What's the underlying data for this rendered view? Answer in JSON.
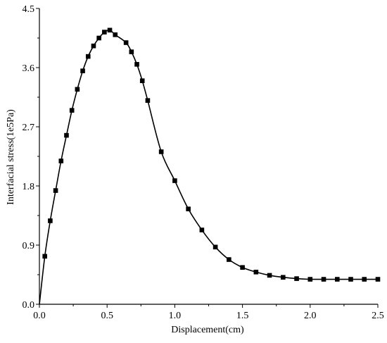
{
  "chart_data": {
    "type": "line",
    "xlabel": "Displacement(cm)",
    "ylabel": "Interfacial stress(1e5Pa)",
    "xlim": [
      0.0,
      2.5
    ],
    "ylim": [
      0.0,
      4.5
    ],
    "x_ticks": [
      0.0,
      0.5,
      1.0,
      1.5,
      2.0,
      2.5
    ],
    "x_tick_labels": [
      "0.0",
      "0.5",
      "1.0",
      "1.5",
      "2.0",
      "2.5"
    ],
    "y_ticks": [
      0.0,
      0.9,
      1.8,
      2.7,
      3.6,
      4.5
    ],
    "y_tick_labels": [
      "0.0",
      "0.9",
      "1.8",
      "2.7",
      "3.6",
      "4.5"
    ],
    "grid": false,
    "marker": "square",
    "colors": {
      "line": "#000000",
      "marker": "#000000",
      "axis": "#000000"
    },
    "series": [
      {
        "x": [
          0.0,
          0.04,
          0.08,
          0.12,
          0.16,
          0.2,
          0.24,
          0.28,
          0.32,
          0.36,
          0.4,
          0.44,
          0.48,
          0.52,
          0.56,
          0.64,
          0.68,
          0.72,
          0.76,
          0.8,
          0.9,
          1.0,
          1.1,
          1.2,
          1.3,
          1.4,
          1.5,
          1.6,
          1.7,
          1.8,
          1.9,
          2.0,
          2.1,
          2.2,
          2.3,
          2.4,
          2.5
        ],
        "y": [
          0.0,
          0.73,
          1.27,
          1.73,
          2.18,
          2.57,
          2.95,
          3.27,
          3.55,
          3.77,
          3.93,
          4.05,
          4.14,
          4.17,
          4.1,
          3.98,
          3.84,
          3.65,
          3.4,
          3.1,
          2.32,
          1.88,
          1.45,
          1.13,
          0.87,
          0.68,
          0.56,
          0.49,
          0.44,
          0.41,
          0.39,
          0.38,
          0.38,
          0.38,
          0.38,
          0.38,
          0.38
        ]
      }
    ]
  }
}
